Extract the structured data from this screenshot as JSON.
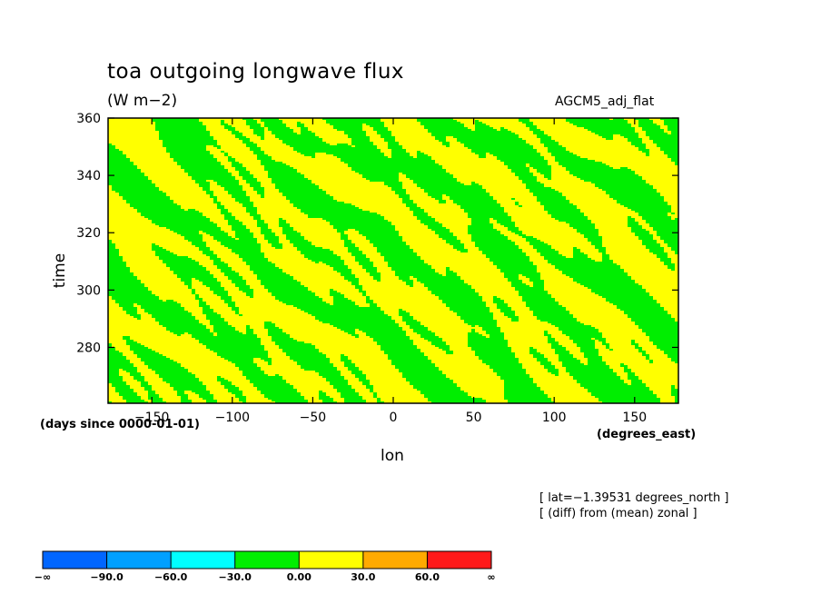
{
  "chart_data": {
    "type": "heatmap",
    "title": "toa outgoing longwave flux",
    "units": "(W m−2)",
    "dataset": "AGCM5_adj_flat",
    "xlabel": "lon",
    "ylabel": "time",
    "x_units": "(degrees_east)",
    "time_units": "(days since 0000-01-01)",
    "x_ticks": [
      "−150",
      "−100",
      "−50",
      "0",
      "50",
      "100",
      "150"
    ],
    "x_tick_values": [
      -150,
      -100,
      -50,
      0,
      50,
      100,
      150
    ],
    "y_ticks": [
      "280",
      "300",
      "320",
      "340",
      "360"
    ],
    "y_tick_values": [
      280,
      300,
      320,
      340,
      360
    ],
    "xlim": [
      -177.2,
      177.2
    ],
    "ylim": [
      260.5,
      360
    ],
    "notes": [
      "[ lat=−1.39531 degrees_north ]",
      "[ (diff) from (mean) zonal ]"
    ],
    "colorbar": {
      "bounds": [
        "−∞",
        "−90.0",
        "−60.0",
        "−30.0",
        "0.00",
        "30.0",
        "60.0",
        "∞"
      ],
      "colors": [
        "#0066ff",
        "#00a0ff",
        "#00ffff",
        "#00ee00",
        "#ffff00",
        "#ffaa00",
        "#ff1a1a"
      ]
    },
    "field_levels_present": [
      {
        "range": "−30.0 to 0.00",
        "color": "#00ee00"
      },
      {
        "range": "0.00 to 30.0",
        "color": "#ffff00"
      }
    ]
  }
}
